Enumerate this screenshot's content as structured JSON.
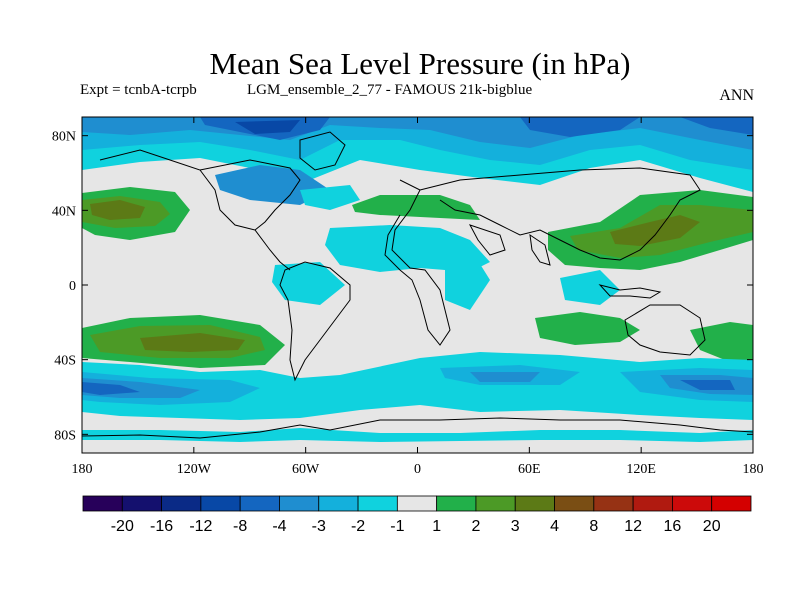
{
  "title": "Mean Sea Level Pressure (in hPa)",
  "subtitle_left": "Expt = tcnbA-tcrpb",
  "subtitle_mid": "LGM_ensemble_2_77 - FAMOUS 21k-bigblue",
  "subtitle_right": "ANN",
  "axes": {
    "lat_labels": [
      "80N",
      "40N",
      "0",
      "40S",
      "80S"
    ],
    "lat_values": [
      80,
      40,
      0,
      -40,
      -80
    ],
    "lon_labels": [
      "180",
      "120W",
      "60W",
      "0",
      "60E",
      "120E",
      "180"
    ],
    "lon_values": [
      -180,
      -120,
      -60,
      0,
      60,
      120,
      180
    ],
    "lat_range": [
      -90,
      90
    ],
    "lon_range": [
      -180,
      180
    ]
  },
  "colorbar": {
    "labels": [
      "-20",
      "-16",
      "-12",
      "-8",
      "-4",
      "-3",
      "-2",
      "-1",
      "1",
      "2",
      "3",
      "4",
      "8",
      "12",
      "16",
      "20"
    ],
    "colors": [
      "#27005a",
      "#14106e",
      "#0a2a86",
      "#0848a6",
      "#1466c0",
      "#1f8ed0",
      "#14b0dc",
      "#10d2de",
      "#e6e6e6",
      "#22b04a",
      "#4c9a26",
      "#5c7a16",
      "#7a4e14",
      "#963214",
      "#b01a10",
      "#cc0a0a",
      "#d40000"
    ]
  },
  "colors": {
    "land_outline": "#000000",
    "background": "#e6e6e6"
  }
}
